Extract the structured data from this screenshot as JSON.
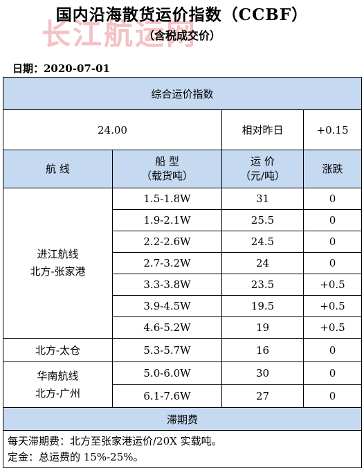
{
  "title": "国内沿海散货运价指数（CCBF）",
  "subtitle": "（含税成交价）",
  "watermark": "长江航运网",
  "date_label": "日期：2020-07-01",
  "composite": {
    "header": "综合运价指数",
    "value": "24.00",
    "compare_label": "相对昨日",
    "change": "+0.15"
  },
  "columns": {
    "route": "航 线",
    "ship_type_line1": "船 型",
    "ship_type_line2": "（载货吨）",
    "price_line1": "运 价",
    "price_line2": "（元/吨）",
    "change": "涨跌"
  },
  "groups": [
    {
      "route_line1": "进江航线",
      "route_line2": "北方-张家港",
      "rows": [
        {
          "ship": "1.5-1.8W",
          "price": "31",
          "change": "0"
        },
        {
          "ship": "1.9-2.1W",
          "price": "25.5",
          "change": "0"
        },
        {
          "ship": "2.2-2.6W",
          "price": "24.5",
          "change": "0"
        },
        {
          "ship": "2.7-3.2W",
          "price": "24",
          "change": "0"
        },
        {
          "ship": "3.3-3.8W",
          "price": "23.5",
          "change": "+0.5"
        },
        {
          "ship": "3.9-4.5W",
          "price": "19.5",
          "change": "+0.5"
        },
        {
          "ship": "4.6-5.2W",
          "price": "19",
          "change": "+0.5"
        }
      ]
    },
    {
      "route_line1": "北方-太仓",
      "route_line2": "",
      "rows": [
        {
          "ship": "5.3-5.7W",
          "price": "16",
          "change": "0"
        }
      ]
    },
    {
      "route_line1": "华南航线",
      "route_line2": "北方-广州",
      "rows": [
        {
          "ship": "5.0-6.0W",
          "price": "30",
          "change": "0"
        },
        {
          "ship": "6.1-7.6W",
          "price": "27",
          "change": "0"
        }
      ]
    }
  ],
  "demurrage": {
    "header": "滞期费",
    "line1": "每天滞期费：北方至张家港运价/20X 实载吨。",
    "line2": "定金：总运费的 15%-25%。"
  }
}
